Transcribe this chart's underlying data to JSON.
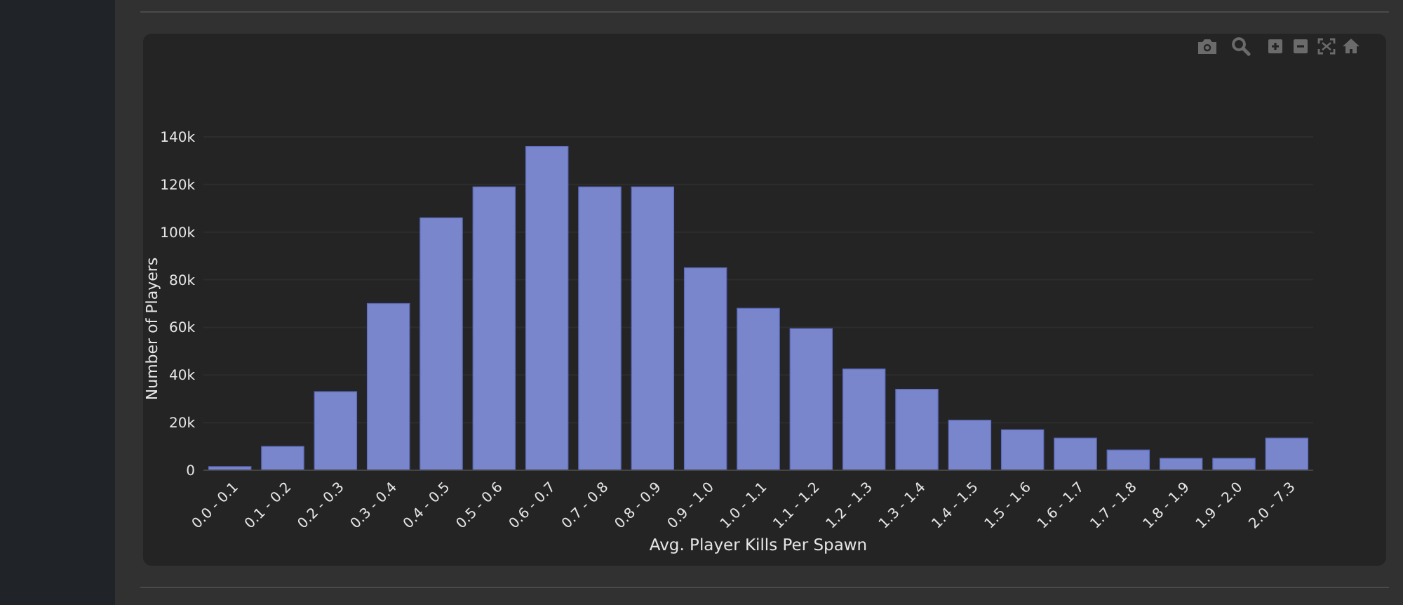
{
  "chart_data": {
    "type": "bar",
    "xlabel": "Avg. Player Kills Per Spawn",
    "ylabel": "Number of Players",
    "categories": [
      "0.0 - 0.1",
      "0.1 - 0.2",
      "0.2 - 0.3",
      "0.3 - 0.4",
      "0.4 - 0.5",
      "0.5 - 0.6",
      "0.6 - 0.7",
      "0.7 - 0.8",
      "0.8 - 0.9",
      "0.9 - 1.0",
      "1.0 - 1.1",
      "1.1 - 1.2",
      "1.2 - 1.3",
      "1.3 - 1.4",
      "1.4 - 1.5",
      "1.5 - 1.6",
      "1.6 - 1.7",
      "1.7 - 1.8",
      "1.8 - 1.9",
      "1.9 - 2.0",
      "2.0 - 7.3"
    ],
    "values": [
      1500,
      10000,
      33000,
      70000,
      106000,
      119000,
      136000,
      119000,
      119000,
      85000,
      68000,
      59500,
      42500,
      34000,
      21000,
      17000,
      13500,
      8500,
      5000,
      5000,
      13500
    ],
    "color": "#7986cb",
    "ylim": [
      0,
      140000
    ],
    "yticks": [
      0,
      {
        "value": 20000,
        "label": "20k"
      },
      {
        "value": 40000,
        "label": "40k"
      },
      {
        "value": 60000,
        "label": "60k"
      },
      {
        "value": 80000,
        "label": "80k"
      },
      {
        "value": 100000,
        "label": "100k"
      },
      {
        "value": 120000,
        "label": "120k"
      },
      {
        "value": 140000,
        "label": "140k"
      }
    ],
    "grid": "y"
  }
}
